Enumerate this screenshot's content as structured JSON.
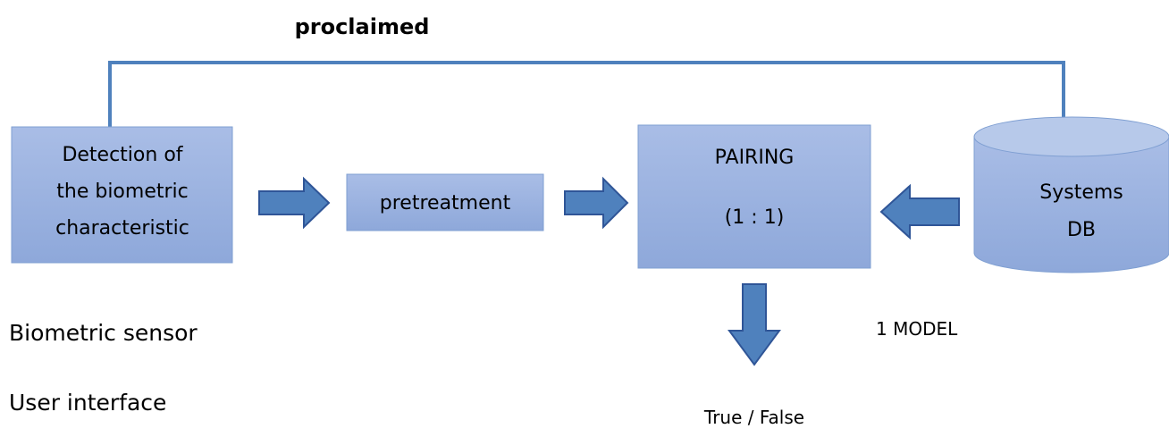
{
  "header": {
    "title": "proclaimed"
  },
  "nodes": [
    {
      "label": [
        "Detection of",
        "the biometric",
        "characteristic"
      ]
    },
    {
      "label": [
        "pretreatment"
      ]
    },
    {
      "label": [
        "PAIRING",
        "(1 : 1)"
      ]
    },
    {
      "label": [
        "Systems",
        "DB"
      ]
    }
  ],
  "captions": [
    "Biometric sensor",
    "User interface",
    "1 MODEL",
    "True / False"
  ]
}
